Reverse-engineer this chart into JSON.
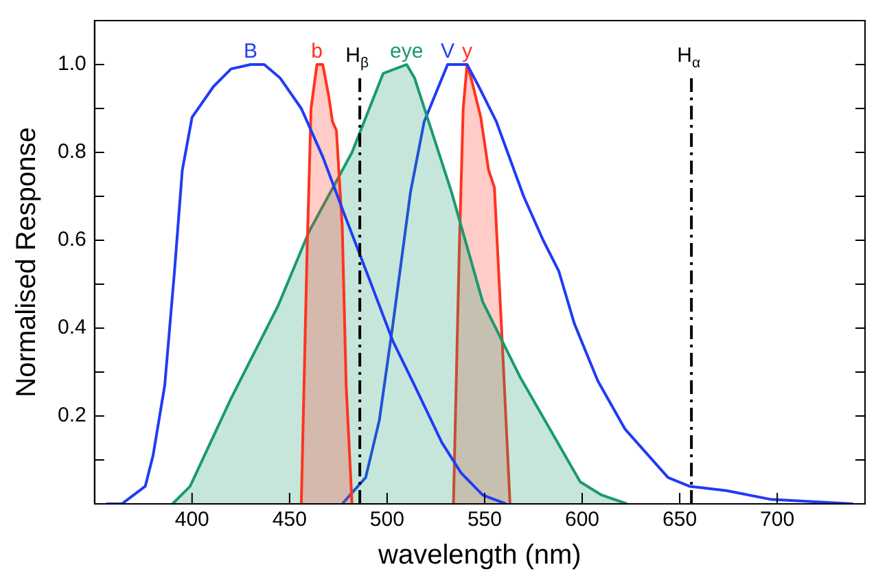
{
  "chart_data": {
    "type": "line",
    "xlabel": "wavelength (nm)",
    "ylabel": "Normalised Response",
    "xlim": [
      350,
      745
    ],
    "xticks": [
      400,
      450,
      500,
      550,
      600,
      650,
      700
    ],
    "ylim": [
      0,
      1.1
    ],
    "yticks": [
      {
        "value": 0.1,
        "label": null
      },
      0.2,
      {
        "value": 0.3,
        "label": null
      },
      0.4,
      {
        "value": 0.5,
        "label": null
      },
      0.6,
      {
        "value": 0.7,
        "label": null
      },
      0.8,
      {
        "value": 0.9,
        "label": null
      },
      {
        "value": 1,
        "label": "1.0"
      }
    ],
    "grid": false,
    "legend": false,
    "marker": "none",
    "line_style": "solid",
    "series": [
      {
        "name": "B",
        "type": "line",
        "color": "#1f3cf5",
        "x": [
          356,
          364,
          376,
          380,
          386,
          391,
          395,
          400,
          411,
          420,
          430,
          437,
          445,
          456,
          467,
          478,
          491,
          503,
          514,
          528,
          538,
          549,
          561
        ],
        "values": [
          0,
          0,
          0.04,
          0.11,
          0.27,
          0.53,
          0.76,
          0.88,
          0.95,
          0.99,
          1.0,
          1.0,
          0.97,
          0.9,
          0.79,
          0.66,
          0.51,
          0.37,
          0.27,
          0.14,
          0.07,
          0.02,
          0
        ]
      },
      {
        "name": "b",
        "type": "area",
        "color": "#ff3320",
        "x": [
          456,
          459,
          461,
          464,
          467,
          470,
          472,
          474,
          477,
          479,
          482
        ],
        "values": [
          0,
          0.58,
          0.9,
          1.0,
          1.0,
          0.93,
          0.87,
          0.85,
          0.63,
          0.27,
          0
        ]
      },
      {
        "name": "eye",
        "type": "area",
        "color": "#1a9a70",
        "x": [
          390,
          399,
          420,
          444,
          460,
          482,
          498,
          510,
          514,
          533,
          549,
          568,
          599,
          610,
          623
        ],
        "values": [
          0,
          0.04,
          0.24,
          0.45,
          0.62,
          0.8,
          0.98,
          1.0,
          0.97,
          0.71,
          0.46,
          0.29,
          0.05,
          0.02,
          0
        ]
      },
      {
        "name": "V",
        "type": "line",
        "color": "#1f3cf5",
        "x": [
          477,
          489,
          496,
          503,
          512,
          519,
          531,
          538,
          541,
          547,
          556,
          570,
          580,
          588,
          596,
          608,
          622,
          634,
          644,
          655,
          674,
          697,
          739
        ],
        "values": [
          0,
          0.06,
          0.19,
          0.41,
          0.71,
          0.87,
          1.0,
          1.0,
          1.0,
          0.95,
          0.87,
          0.7,
          0.6,
          0.53,
          0.41,
          0.28,
          0.17,
          0.11,
          0.06,
          0.04,
          0.03,
          0.01,
          0
        ]
      },
      {
        "name": "y",
        "type": "area",
        "color": "#ff3320",
        "x": [
          534,
          537,
          539,
          541,
          543,
          548,
          552,
          555,
          559,
          563
        ],
        "values": [
          0,
          0.58,
          0.9,
          1.0,
          0.97,
          0.88,
          0.76,
          0.72,
          0.37,
          0
        ]
      }
    ],
    "ref_lines": [
      {
        "axis": "x",
        "value": 486,
        "label": "H$_{β}$",
        "color": "#000000",
        "line_style": "dashdot"
      },
      {
        "axis": "x",
        "value": 656,
        "label": "H$_{α}$",
        "color": "#000000",
        "line_style": "dashdot"
      }
    ]
  }
}
